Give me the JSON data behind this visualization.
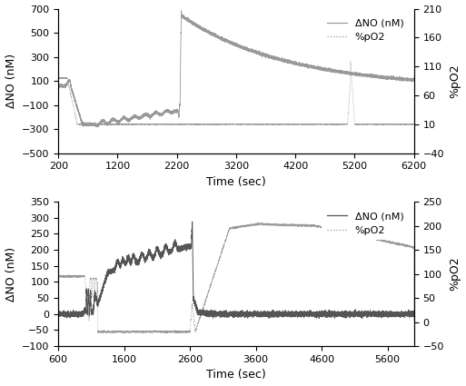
{
  "top": {
    "xlim": [
      200,
      6200
    ],
    "ylim_left": [
      -500,
      700
    ],
    "ylim_right": [
      -40,
      210
    ],
    "xticks": [
      200,
      1200,
      2200,
      3200,
      4200,
      5200,
      6200
    ],
    "yticks_left": [
      -500,
      -300,
      -100,
      100,
      300,
      500,
      700
    ],
    "yticks_right": [
      -40,
      10,
      60,
      110,
      160,
      210
    ],
    "xlabel": "Time (sec)",
    "ylabel_left": "ΔNO (nM)",
    "ylabel_right": "%pO2",
    "legend": [
      "ΔNO (nM)",
      "%pO2"
    ],
    "no_color": "#999999",
    "o2_color": "#999999"
  },
  "bottom": {
    "xlim": [
      600,
      6000
    ],
    "ylim_left": [
      -100,
      350
    ],
    "ylim_right": [
      -50,
      250
    ],
    "xticks": [
      600,
      1600,
      2600,
      3600,
      4600,
      5600
    ],
    "yticks_left": [
      -100,
      -50,
      0,
      50,
      100,
      150,
      200,
      250,
      300,
      350
    ],
    "yticks_right": [
      -50,
      0,
      50,
      100,
      150,
      200,
      250
    ],
    "xlabel": "Time (sec)",
    "ylabel_left": "ΔNO (nM)",
    "ylabel_right": "%pO2",
    "legend": [
      "ΔNO (nM)",
      "%pO2"
    ],
    "no_color": "#555555",
    "o2_color": "#999999"
  },
  "background_color": "#ffffff",
  "font_size_label": 9,
  "font_size_tick": 8,
  "font_size_legend": 8
}
